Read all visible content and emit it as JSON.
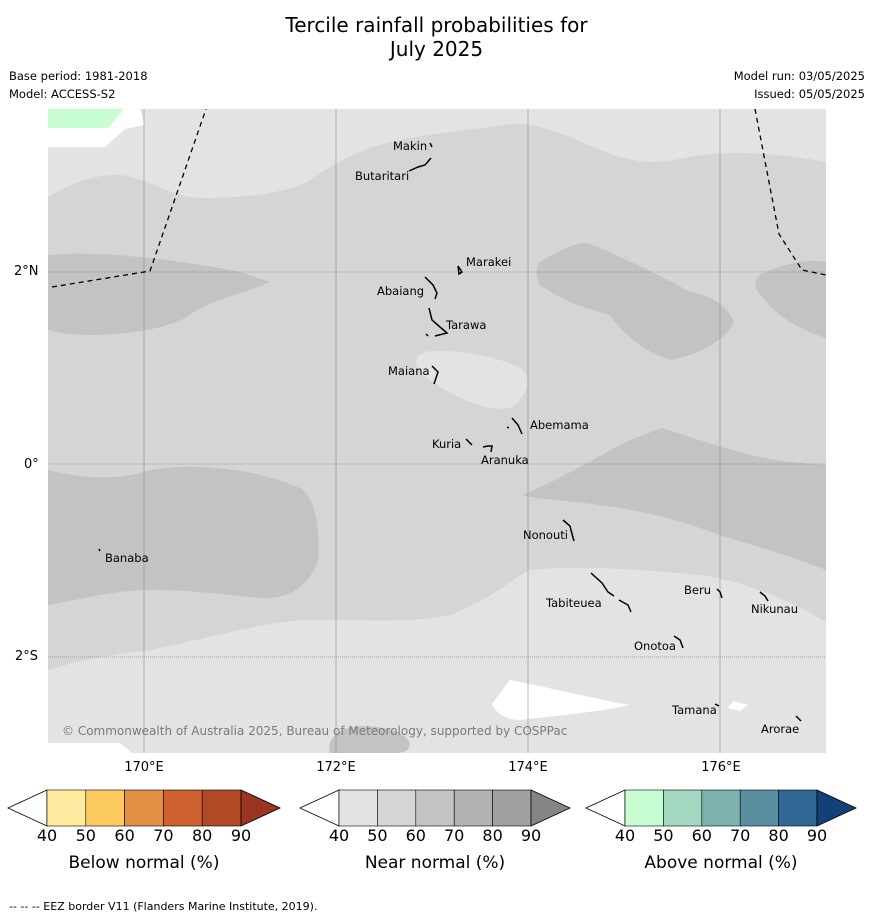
{
  "title_line1": "Tercile rainfall probabilities for",
  "title_line2": "July 2025",
  "base_period": "Base period: 1981-2018",
  "model": "Model: ACCESS-S2",
  "model_run": "Model run: 03/05/2025",
  "issued": "Issued: 05/05/2025",
  "copyright": "© Commonwealth of Australia 2025, Bureau of Meteorology, supported by COSPPac",
  "footnote": "--  --  -- EEZ border V11 (Flanders Marine Institute, 2019).",
  "lat_labels": [
    "2°N",
    "0°",
    "2°S"
  ],
  "lon_labels": [
    "170°E",
    "172°E",
    "174°E",
    "176°E"
  ],
  "places": [
    "Makin",
    "Butaritari",
    "Marakei",
    "Abaiang",
    "Tarawa",
    "Maiana",
    "Abemama",
    "Kuria",
    "Aranuka",
    "Banaba",
    "Nonouti",
    "Tabiteuea",
    "Beru",
    "Nikunau",
    "Onotoa",
    "Tamana",
    "Arorae"
  ],
  "legends": [
    {
      "title": "Below normal (%)",
      "ticks": [
        "40",
        "50",
        "60",
        "70",
        "80",
        "90"
      ],
      "colors": [
        "#ffffff",
        "#feeb9f",
        "#fdca60",
        "#e39044",
        "#cf6131",
        "#b04a24",
        "#9a3520"
      ]
    },
    {
      "title": "Near normal (%)",
      "ticks": [
        "40",
        "50",
        "60",
        "70",
        "80",
        "90"
      ],
      "colors": [
        "#ffffff",
        "#e3e3e3",
        "#d5d5d5",
        "#c3c3c3",
        "#b1b1b1",
        "#a0a0a0",
        "#858585"
      ]
    },
    {
      "title": "Above normal (%)",
      "ticks": [
        "40",
        "50",
        "60",
        "70",
        "80",
        "90"
      ],
      "colors": [
        "#ffffff",
        "#c8fcd3",
        "#a2d8bf",
        "#7db3ae",
        "#5a8fa0",
        "#326696",
        "#14407a"
      ]
    }
  ]
}
